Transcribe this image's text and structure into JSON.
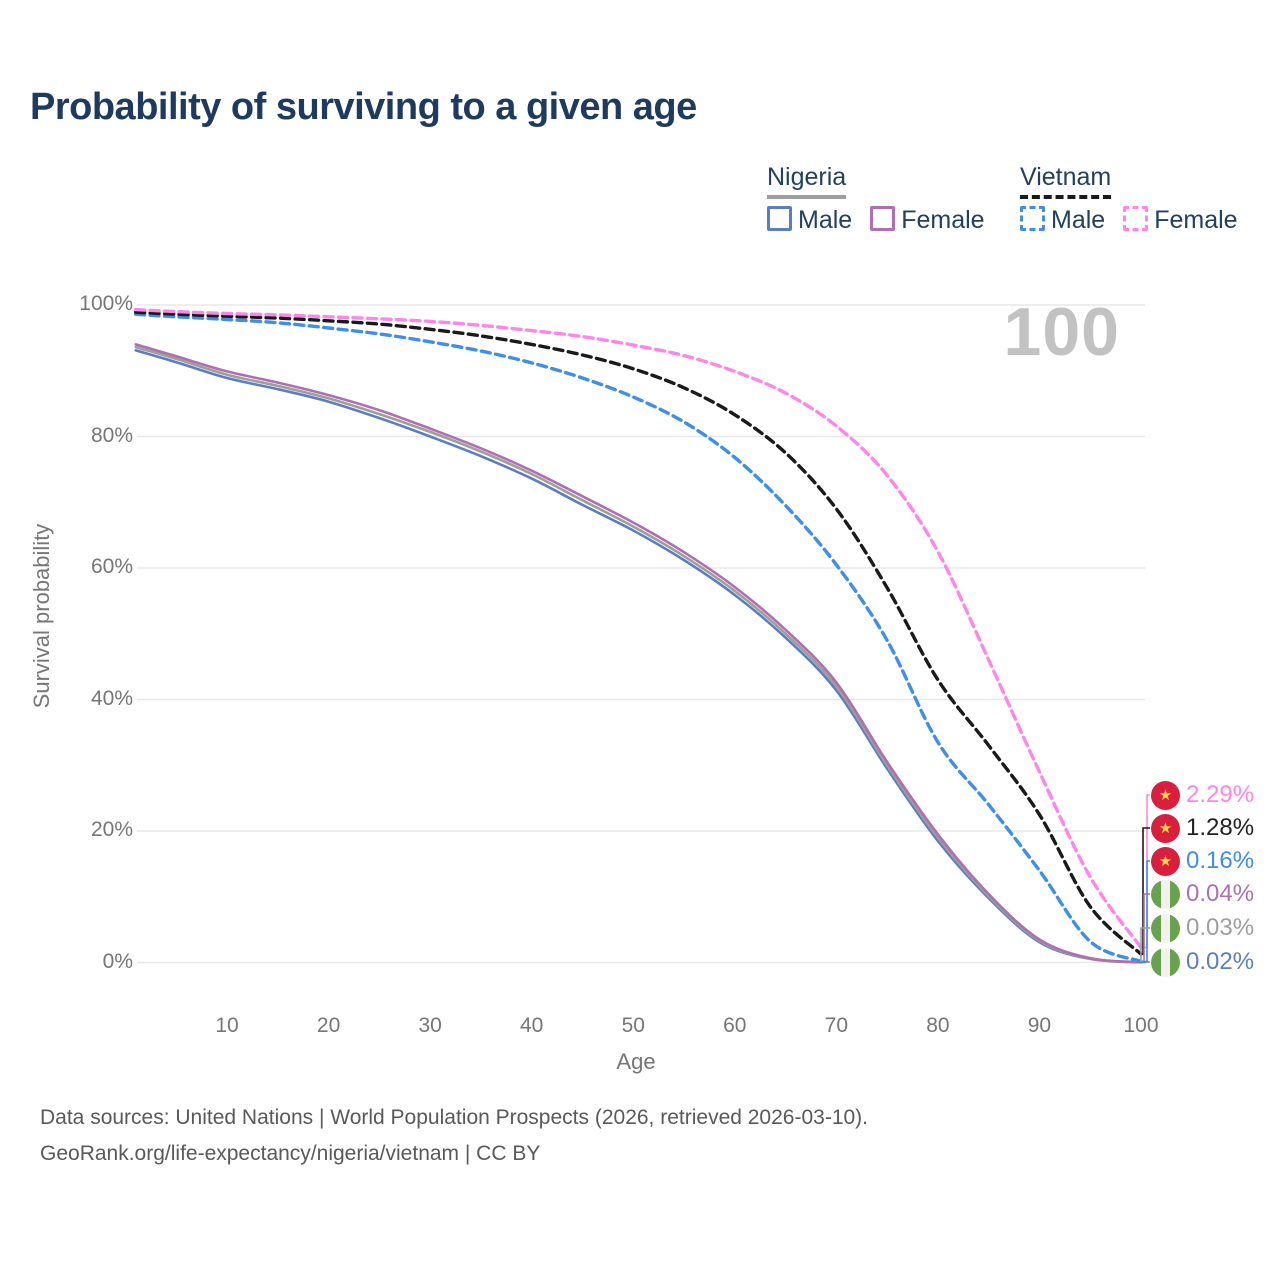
{
  "title": "Probability of surviving to a given age",
  "watermark_age": "100",
  "legend": {
    "nigeria": {
      "title": "Nigeria",
      "male_label": "Male",
      "female_label": "Female",
      "line_style": "solid",
      "line_color": "#9e9e9e",
      "male_color": "#5b7fbd",
      "female_color": "#b06fae"
    },
    "vietnam": {
      "title": "Vietnam",
      "male_label": "Male",
      "female_label": "Female",
      "line_style": "dashed",
      "line_color": "#1a1a1a",
      "male_color": "#3f8ee8",
      "female_color": "#ff85e8"
    }
  },
  "footer": {
    "line1": "Data sources: United Nations | World Population Prospects (2026, retrieved 2026-03-10).",
    "line2": "GeoRank.org/life-expectancy/nigeria/vietnam | CC BY"
  },
  "chart_data": {
    "type": "line",
    "title": "Probability of surviving to a given age",
    "xlabel": "Age",
    "ylabel": "Survival probability",
    "xlim": [
      0,
      100
    ],
    "ylim": [
      0,
      100
    ],
    "grid": "horizontal",
    "x_ticks": [
      10,
      20,
      30,
      40,
      50,
      60,
      70,
      80,
      90,
      100
    ],
    "y_tick_values": [
      0,
      20,
      40,
      60,
      80,
      100
    ],
    "y_tick_labels": [
      "0%",
      "20%",
      "40%",
      "60%",
      "80%",
      "100%"
    ],
    "ages": [
      1,
      5,
      10,
      15,
      20,
      25,
      30,
      35,
      40,
      45,
      50,
      55,
      60,
      65,
      70,
      75,
      80,
      85,
      90,
      95,
      100
    ],
    "series": [
      {
        "name": "Vietnam Female",
        "country": "Vietnam",
        "sex": "Female",
        "color": "#ff85e8",
        "dash": true,
        "flag": "vietnam",
        "end_label": "2.29%",
        "end_label_color": "#ff85e8",
        "end_value": 2.29,
        "values": [
          99.3,
          99.0,
          98.7,
          98.5,
          98.2,
          97.9,
          97.5,
          96.9,
          96.1,
          95.2,
          93.9,
          92.3,
          89.9,
          86.6,
          81.6,
          74.1,
          62.5,
          46.0,
          29.0,
          13.0,
          2.29
        ]
      },
      {
        "name": "Vietnam",
        "country": "Vietnam",
        "sex": "All",
        "color": "#1a1a1a",
        "dash": true,
        "flag": "vietnam",
        "end_label": "1.28%",
        "end_label_color": "#222222",
        "end_value": 1.28,
        "values": [
          98.9,
          98.6,
          98.3,
          98.0,
          97.6,
          97.1,
          96.3,
          95.3,
          94.0,
          92.4,
          90.3,
          87.4,
          83.3,
          77.5,
          69.0,
          57.0,
          43.0,
          33.0,
          22.5,
          8.5,
          1.28
        ]
      },
      {
        "name": "Vietnam Male",
        "country": "Vietnam",
        "sex": "Male",
        "color": "#3f8ee8",
        "dash": true,
        "flag": "vietnam",
        "end_label": "0.16%",
        "end_label_color": "#3f8ee8",
        "end_value": 0.16,
        "values": [
          98.6,
          98.2,
          97.8,
          97.3,
          96.5,
          95.6,
          94.4,
          93.0,
          91.2,
          88.9,
          86.0,
          82.2,
          76.8,
          69.5,
          60.5,
          49.0,
          33.5,
          24.0,
          14.0,
          3.2,
          0.16
        ]
      },
      {
        "name": "Nigeria Female",
        "country": "Nigeria",
        "sex": "Female",
        "color": "#b06fae",
        "dash": false,
        "flag": "nigeria",
        "end_label": "0.04%",
        "end_label_color": "#b06fae",
        "end_value": 0.04,
        "values": [
          94.0,
          92.2,
          89.9,
          88.2,
          86.3,
          84.0,
          81.2,
          78.2,
          74.8,
          70.9,
          66.9,
          62.4,
          57.1,
          50.6,
          42.6,
          30.5,
          19.5,
          10.4,
          3.5,
          0.65,
          0.04
        ]
      },
      {
        "name": "Nigeria",
        "country": "Nigeria",
        "sex": "All",
        "color": "#9e9e9e",
        "dash": false,
        "flag": "nigeria",
        "end_label": "0.03%",
        "end_label_color": "#9e9e9e",
        "end_value": 0.03,
        "values": [
          93.6,
          91.8,
          89.4,
          87.7,
          85.8,
          83.4,
          80.7,
          77.7,
          74.3,
          70.3,
          66.3,
          61.8,
          56.5,
          50.0,
          42.0,
          30.0,
          19.0,
          10.1,
          3.3,
          0.6,
          0.03
        ]
      },
      {
        "name": "Nigeria Male",
        "country": "Nigeria",
        "sex": "Male",
        "color": "#5b7fbd",
        "dash": false,
        "flag": "nigeria",
        "end_label": "0.02%",
        "end_label_color": "#5b7fbd",
        "end_value": 0.02,
        "values": [
          93.1,
          91.3,
          88.9,
          87.2,
          85.3,
          82.8,
          80.0,
          77.0,
          73.6,
          69.6,
          65.7,
          61.2,
          55.9,
          49.4,
          41.4,
          29.5,
          18.5,
          9.8,
          3.1,
          0.55,
          0.02
        ]
      }
    ]
  }
}
